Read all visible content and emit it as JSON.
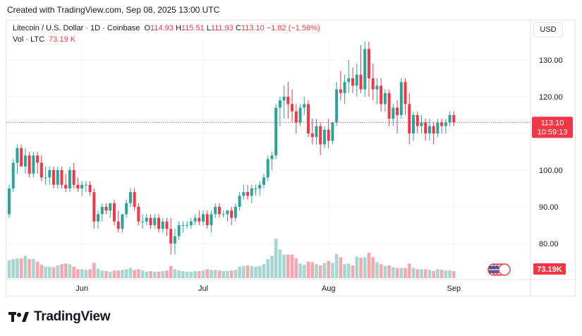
{
  "header": {
    "created": "Created with TradingView.com, Sep 08, 2025 13:00 UTC"
  },
  "legend": {
    "symbol": "Litecoin / U.S. Dollar · 1D · Coinbase",
    "o_label": "O",
    "o": "114.93",
    "h_label": "H",
    "h": "115.51",
    "l_label": "L",
    "l": "111.93",
    "c_label": "C",
    "c": "113.10",
    "change": "−1.82 (−1.58%)",
    "vol_label": "Vol · LTC",
    "vol": "73.19 K"
  },
  "currency": "USD",
  "price_tag": {
    "price": "113.10",
    "countdown": "10:59:13"
  },
  "volume_tag": "73.19K",
  "footer": {
    "brand": "TradingView"
  },
  "colors": {
    "up": "#26a69a",
    "down": "#f23645",
    "vol_up": "#a5d6d0",
    "vol_down": "#f6a6ad",
    "grid": "#f0f3fa"
  },
  "chart_data": {
    "type": "candlestick",
    "y_axis": {
      "ticks": [
        "80.00",
        "90.00",
        "100.00",
        "110.00",
        "120.00",
        "130.00"
      ],
      "range": [
        75,
        139
      ]
    },
    "x_axis": {
      "ticks": [
        {
          "label": "Jun",
          "index": 18
        },
        {
          "label": "Jul",
          "index": 48
        },
        {
          "label": "Aug",
          "index": 79
        },
        {
          "label": "Sep",
          "index": 110
        }
      ]
    },
    "candles": [
      [
        88,
        96,
        87,
        95,
        0.28
      ],
      [
        95,
        103,
        94,
        102,
        0.3
      ],
      [
        102,
        107,
        99,
        106,
        0.31
      ],
      [
        106,
        107,
        101,
        101,
        0.31
      ],
      [
        101,
        106,
        99,
        104,
        0.35
      ],
      [
        104,
        105,
        98,
        99,
        0.3
      ],
      [
        99,
        105,
        98,
        104,
        0.3
      ],
      [
        104,
        105,
        99,
        102,
        0.26
      ],
      [
        102,
        104,
        97,
        98,
        0.21
      ],
      [
        98,
        101,
        96,
        98,
        0.18
      ],
      [
        98,
        101,
        96,
        100,
        0.18
      ],
      [
        100,
        101,
        95,
        96,
        0.17
      ],
      [
        96,
        101,
        95,
        100,
        0.2
      ],
      [
        100,
        101,
        95,
        96,
        0.22
      ],
      [
        96,
        99,
        94,
        95,
        0.23
      ],
      [
        95,
        101,
        94,
        100,
        0.22
      ],
      [
        100,
        102,
        95,
        96,
        0.18
      ],
      [
        96,
        98,
        94,
        95,
        0.14
      ],
      [
        95,
        97,
        93,
        96,
        0.14
      ],
      [
        96,
        97,
        94,
        96,
        0.13
      ],
      [
        96,
        97,
        93,
        94,
        0.14
      ],
      [
        94,
        95,
        84,
        86,
        0.24
      ],
      [
        86,
        89,
        84,
        88,
        0.15
      ],
      [
        88,
        91,
        86,
        90,
        0.12
      ],
      [
        90,
        91,
        88,
        89,
        0.11
      ],
      [
        89,
        91,
        87,
        91,
        0.1
      ],
      [
        91,
        92,
        85,
        86,
        0.12
      ],
      [
        86,
        89,
        83,
        84,
        0.12
      ],
      [
        84,
        88,
        83,
        88,
        0.13
      ],
      [
        88,
        92,
        87,
        91,
        0.14
      ],
      [
        91,
        95,
        90,
        94,
        0.16
      ],
      [
        94,
        95,
        89,
        90,
        0.13
      ],
      [
        90,
        91,
        85,
        86,
        0.14
      ],
      [
        86,
        88,
        84,
        86,
        0.12
      ],
      [
        86,
        88,
        85,
        87,
        0.1
      ],
      [
        87,
        88,
        84,
        85,
        0.11
      ],
      [
        85,
        88,
        84,
        87,
        0.1
      ],
      [
        87,
        88,
        83,
        84,
        0.1
      ],
      [
        84,
        87,
        83,
        86,
        0.11
      ],
      [
        86,
        87,
        82,
        84,
        0.12
      ],
      [
        84,
        87,
        77,
        80,
        0.19
      ],
      [
        80,
        84,
        77,
        82,
        0.14
      ],
      [
        82,
        86,
        81,
        85,
        0.12
      ],
      [
        85,
        86,
        83,
        85,
        0.11
      ],
      [
        85,
        86,
        84,
        85,
        0.1
      ],
      [
        85,
        87,
        84,
        86,
        0.1
      ],
      [
        86,
        88,
        85,
        87,
        0.11
      ],
      [
        87,
        89,
        85,
        86,
        0.11
      ],
      [
        86,
        89,
        85,
        88,
        0.12
      ],
      [
        88,
        89,
        84,
        85,
        0.14
      ],
      [
        85,
        89,
        83,
        88,
        0.13
      ],
      [
        88,
        91,
        87,
        90,
        0.13
      ],
      [
        90,
        91,
        87,
        88,
        0.12
      ],
      [
        88,
        89,
        87,
        88,
        0.11
      ],
      [
        88,
        89,
        86,
        89,
        0.11
      ],
      [
        89,
        90,
        85,
        87,
        0.12
      ],
      [
        87,
        91,
        86,
        90,
        0.13
      ],
      [
        90,
        94,
        89,
        93,
        0.18
      ],
      [
        93,
        96,
        92,
        94,
        0.19
      ],
      [
        94,
        96,
        92,
        93,
        0.2
      ],
      [
        93,
        96,
        91,
        95,
        0.19
      ],
      [
        95,
        96,
        93,
        95,
        0.18
      ],
      [
        95,
        97,
        93,
        96,
        0.19
      ],
      [
        96,
        99,
        95,
        98,
        0.22
      ],
      [
        98,
        104,
        97,
        103,
        0.3
      ],
      [
        103,
        105,
        100,
        104,
        0.35
      ],
      [
        104,
        118,
        103,
        117,
        0.62
      ],
      [
        117,
        120,
        112,
        119,
        0.45
      ],
      [
        119,
        123,
        114,
        120,
        0.37
      ],
      [
        120,
        124,
        114,
        118,
        0.37
      ],
      [
        118,
        122,
        113,
        116,
        0.37
      ],
      [
        116,
        118,
        110,
        113,
        0.31
      ],
      [
        113,
        118,
        112,
        117,
        0.23
      ],
      [
        117,
        120,
        115,
        118,
        0.21
      ],
      [
        118,
        119,
        109,
        110,
        0.26
      ],
      [
        110,
        114,
        107,
        109,
        0.25
      ],
      [
        109,
        114,
        107,
        112,
        0.22
      ],
      [
        112,
        113,
        104,
        107,
        0.2
      ],
      [
        107,
        112,
        106,
        111,
        0.24
      ],
      [
        111,
        114,
        106,
        108,
        0.27
      ],
      [
        108,
        113,
        107,
        113,
        0.24
      ],
      [
        113,
        124,
        112,
        122,
        0.38
      ],
      [
        122,
        127,
        119,
        121,
        0.33
      ],
      [
        121,
        126,
        118,
        124,
        0.22
      ],
      [
        124,
        130,
        121,
        125,
        0.23
      ],
      [
        125,
        128,
        121,
        123,
        0.2
      ],
      [
        123,
        129,
        120,
        126,
        0.34
      ],
      [
        126,
        134,
        121,
        122,
        0.32
      ],
      [
        122,
        135,
        120,
        133,
        0.33
      ],
      [
        133,
        135,
        120,
        125,
        0.4
      ],
      [
        125,
        129,
        119,
        122,
        0.33
      ],
      [
        122,
        125,
        118,
        123,
        0.25
      ],
      [
        123,
        125,
        116,
        118,
        0.22
      ],
      [
        118,
        122,
        116,
        121,
        0.19
      ],
      [
        121,
        122,
        112,
        114,
        0.2
      ],
      [
        114,
        118,
        112,
        117,
        0.17
      ],
      [
        117,
        119,
        110,
        115,
        0.16
      ],
      [
        115,
        125,
        114,
        124,
        0.16
      ],
      [
        124,
        125,
        115,
        118,
        0.16
      ],
      [
        118,
        121,
        107,
        110,
        0.23
      ],
      [
        110,
        116,
        108,
        115,
        0.16
      ],
      [
        115,
        116,
        110,
        112,
        0.14
      ],
      [
        112,
        115,
        110,
        113,
        0.14
      ],
      [
        113,
        114,
        108,
        110,
        0.14
      ],
      [
        110,
        114,
        108,
        112,
        0.13
      ],
      [
        112,
        113,
        107,
        110,
        0.11
      ],
      [
        110,
        114,
        109,
        113,
        0.14
      ],
      [
        113,
        114,
        110,
        112,
        0.13
      ],
      [
        112,
        114,
        110,
        113,
        0.12
      ],
      [
        113,
        116,
        112,
        115,
        0.12
      ],
      [
        115,
        116,
        112,
        113,
        0.11
      ]
    ]
  }
}
